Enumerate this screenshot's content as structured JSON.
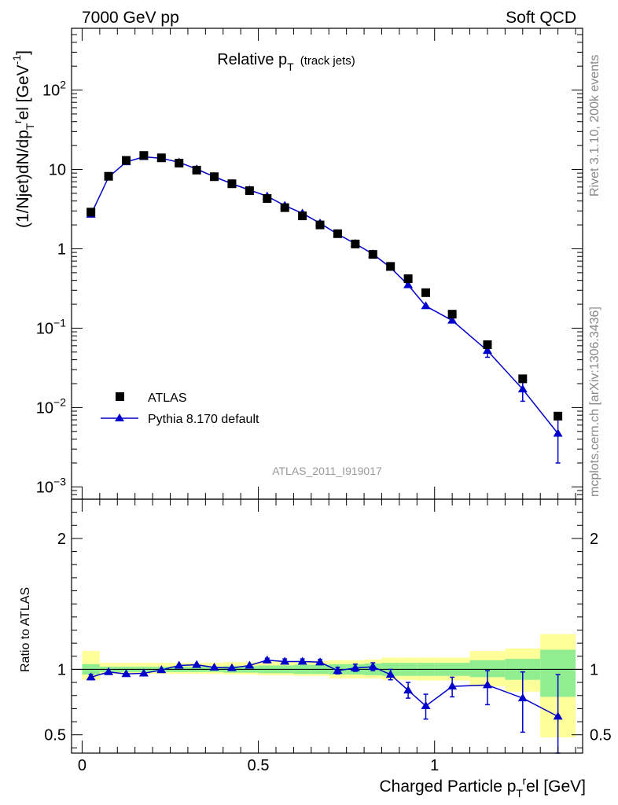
{
  "header": {
    "left": "7000 GeV pp",
    "right": "Soft QCD"
  },
  "main_title": {
    "text": "Relative p",
    "sub": "T",
    "note": "(track jets)"
  },
  "side_text": {
    "rivet": "Rivet 3.1.10,  200k events",
    "mcplots": "mcplots.cern.ch [arXiv:1306.3436]"
  },
  "analysis_label": "ATLAS_2011_I919017",
  "legend": {
    "data": "ATLAS",
    "mc": "Pythia 8.170 default"
  },
  "colors": {
    "mc": "#0000cc",
    "band_inner": "#90ee90",
    "band_outer": "#ffff99",
    "data": "#000000",
    "side_text": "#888888"
  },
  "chart_data": [
    {
      "type": "scatter",
      "title": "Relative pT (track jets)",
      "ylabel": "(1/Njet)dN/dp_T^rel [GeV^-1]",
      "yscale": "log",
      "ylim": [
        0.0007,
        600
      ],
      "xlim": [
        -0.03,
        1.42
      ],
      "ytick_labels": {
        "1e-3": "10",
        "1e-3_exp": "−3",
        "1e-2": "10",
        "1e-2_exp": "−2",
        "1e-1": "10",
        "1e-1_exp": "−1",
        "1": "1",
        "10": "10",
        "100": "10",
        "100_exp": "2"
      },
      "x": [
        0.025,
        0.075,
        0.125,
        0.175,
        0.225,
        0.275,
        0.325,
        0.375,
        0.425,
        0.475,
        0.525,
        0.575,
        0.625,
        0.675,
        0.725,
        0.775,
        0.825,
        0.875,
        0.925,
        0.975,
        1.05,
        1.15,
        1.25,
        1.35
      ],
      "series": [
        {
          "name": "ATLAS",
          "values": [
            2.9,
            8.2,
            13.0,
            15.0,
            14.0,
            12.0,
            9.8,
            8.1,
            6.6,
            5.4,
            4.3,
            3.3,
            2.6,
            2.0,
            1.55,
            1.15,
            0.85,
            0.6,
            0.42,
            0.28,
            0.15,
            0.062,
            0.023,
            0.0078
          ]
        },
        {
          "name": "Pythia 8.170 default",
          "values": [
            2.7,
            8.0,
            12.4,
            14.4,
            13.8,
            12.3,
            10.1,
            8.1,
            6.6,
            5.5,
            4.6,
            3.5,
            2.8,
            2.1,
            1.53,
            1.16,
            0.86,
            0.58,
            0.35,
            0.19,
            0.125,
            0.052,
            0.017,
            0.0047
          ],
          "err_low": [
            null,
            null,
            null,
            null,
            null,
            null,
            null,
            null,
            null,
            null,
            null,
            null,
            null,
            null,
            null,
            null,
            null,
            null,
            null,
            null,
            null,
            0.043,
            0.012,
            0.002
          ],
          "err_high": [
            null,
            null,
            null,
            null,
            null,
            null,
            null,
            null,
            null,
            null,
            null,
            null,
            null,
            null,
            null,
            null,
            null,
            null,
            null,
            null,
            null,
            0.061,
            0.022,
            0.0075
          ]
        }
      ]
    },
    {
      "type": "line",
      "ylabel": "Ratio to ATLAS",
      "xlabel": "Charged Particle p_T^rel [GeV]",
      "xlim": [
        -0.03,
        1.42
      ],
      "ylim": [
        0.36,
        2.3
      ],
      "xticks": [
        0,
        0.5,
        1
      ],
      "xtick_labels": [
        "0",
        "0.5",
        "1"
      ],
      "yticks": [
        0.5,
        1,
        2
      ],
      "ytick_labels": [
        "0.5",
        "1",
        "2"
      ],
      "x": [
        0.025,
        0.075,
        0.125,
        0.175,
        0.225,
        0.275,
        0.325,
        0.375,
        0.425,
        0.475,
        0.525,
        0.575,
        0.625,
        0.675,
        0.725,
        0.775,
        0.825,
        0.875,
        0.925,
        0.975,
        1.05,
        1.15,
        1.25,
        1.35
      ],
      "bin_edges": [
        0.0,
        0.05,
        0.1,
        0.15,
        0.2,
        0.25,
        0.3,
        0.35,
        0.4,
        0.45,
        0.5,
        0.55,
        0.6,
        0.65,
        0.7,
        0.75,
        0.8,
        0.85,
        0.9,
        0.95,
        1.0,
        1.1,
        1.2,
        1.3,
        1.4
      ],
      "band_inner": {
        "low": [
          0.96,
          0.98,
          0.98,
          0.98,
          0.98,
          0.98,
          0.98,
          0.98,
          0.975,
          0.975,
          0.97,
          0.97,
          0.965,
          0.965,
          0.96,
          0.96,
          0.955,
          0.95,
          0.95,
          0.95,
          0.95,
          0.94,
          0.92,
          0.79
        ],
        "high": [
          1.04,
          1.02,
          1.02,
          1.02,
          1.02,
          1.02,
          1.02,
          1.02,
          1.025,
          1.025,
          1.03,
          1.03,
          1.035,
          1.035,
          1.04,
          1.04,
          1.045,
          1.05,
          1.05,
          1.05,
          1.05,
          1.07,
          1.08,
          1.15
        ]
      },
      "band_outer": {
        "low": [
          0.92,
          0.965,
          0.965,
          0.965,
          0.965,
          0.965,
          0.965,
          0.965,
          0.96,
          0.96,
          0.955,
          0.955,
          0.95,
          0.95,
          0.93,
          0.93,
          0.93,
          0.92,
          0.92,
          0.915,
          0.915,
          0.87,
          0.83,
          0.48
        ],
        "high": [
          1.14,
          1.05,
          1.05,
          1.05,
          1.05,
          1.05,
          1.05,
          1.05,
          1.055,
          1.055,
          1.06,
          1.06,
          1.065,
          1.065,
          1.07,
          1.07,
          1.075,
          1.09,
          1.09,
          1.09,
          1.09,
          1.14,
          1.16,
          1.27
        ]
      },
      "series": [
        {
          "name": "Pythia 8.170 default / ATLAS",
          "values": [
            0.94,
            0.98,
            0.965,
            0.97,
            0.995,
            1.03,
            1.035,
            1.015,
            1.01,
            1.03,
            1.07,
            1.06,
            1.06,
            1.055,
            0.99,
            1.01,
            1.02,
            0.96,
            0.84,
            0.72,
            0.87,
            0.88,
            0.78,
            0.64
          ],
          "err_low": [
            0.92,
            null,
            null,
            null,
            null,
            null,
            null,
            null,
            null,
            null,
            1.05,
            1.045,
            1.045,
            1.035,
            0.965,
            0.985,
            0.99,
            0.92,
            0.78,
            0.62,
            0.79,
            0.73,
            0.52,
            0.36
          ],
          "err_high": [
            0.96,
            null,
            null,
            null,
            null,
            null,
            null,
            null,
            null,
            null,
            1.085,
            1.08,
            1.08,
            1.075,
            1.015,
            1.04,
            1.05,
            1.0,
            0.9,
            0.81,
            0.94,
            0.99,
            0.98,
            0.96
          ]
        }
      ]
    }
  ]
}
